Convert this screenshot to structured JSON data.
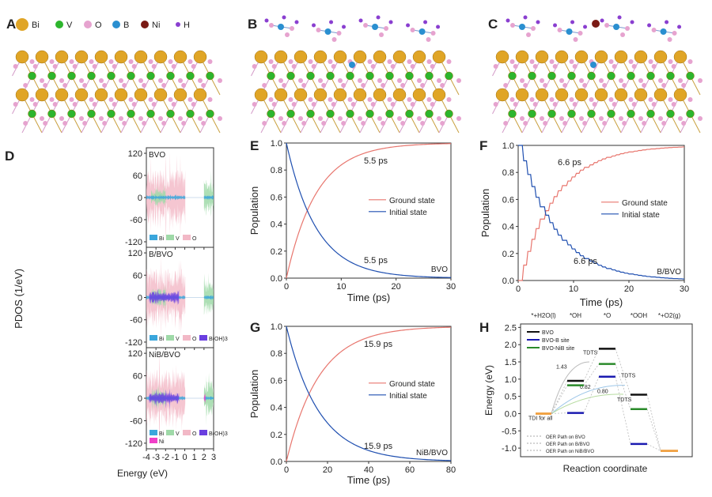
{
  "panel_labels": [
    "A",
    "B",
    "C",
    "D",
    "E",
    "F",
    "G",
    "H"
  ],
  "atom_legend": [
    {
      "symbol": "Bi",
      "color": "#e0a526"
    },
    {
      "symbol": "V",
      "color": "#2db52d"
    },
    {
      "symbol": "O",
      "color": "#e6a3cf"
    },
    {
      "symbol": "B",
      "color": "#2a8fd0"
    },
    {
      "symbol": "Ni",
      "color": "#7a1a14"
    },
    {
      "symbol": "H",
      "color": "#8a3fd0"
    }
  ],
  "chart_data": [
    {
      "panel": "D",
      "type": "area",
      "xlabel": "Energy (eV)",
      "ylabel": "PDOS (1/eV)",
      "xlim": [
        -4,
        3
      ],
      "xticks": [
        -4,
        -3,
        -2,
        -1,
        0,
        1,
        2,
        3
      ],
      "yticks": [
        -120,
        -60,
        0,
        60,
        120
      ],
      "subplots": [
        {
          "title": "BVO",
          "legend": [
            "Bi",
            "V",
            "O"
          ]
        },
        {
          "title": "B/BVO",
          "legend": [
            "Bi",
            "V",
            "O",
            "B(OH)3"
          ]
        },
        {
          "title": "NiB/BVO",
          "legend": [
            "Bi",
            "V",
            "O",
            "B(OH)3",
            "Ni"
          ]
        }
      ],
      "colors": {
        "Bi": "#3aa6dc",
        "V": "#9fd9a8",
        "O": "#f2b8c6",
        "B(OH)3": "#6a3fe0",
        "Ni": "#f040c8"
      }
    },
    {
      "panel": "E",
      "type": "line",
      "xlabel": "Time (ps)",
      "ylabel": "Population",
      "xlim": [
        0,
        30
      ],
      "ylim": [
        0,
        1
      ],
      "xticks": [
        0,
        10,
        20,
        30
      ],
      "yticks": [
        "0.0",
        "0.2",
        "0.4",
        "0.6",
        "0.8",
        "1.0"
      ],
      "series": [
        {
          "name": "Ground state",
          "color": "#e8766e",
          "tau_label": "5.5 ps"
        },
        {
          "name": "Initial state",
          "color": "#1f4fb0",
          "tau_label": "5.5 ps"
        }
      ],
      "tau": 5.5,
      "system": "BVO",
      "legend": "center-right"
    },
    {
      "panel": "F",
      "type": "line",
      "xlabel": "Time (ps)",
      "ylabel": "Population",
      "xlim": [
        0,
        30
      ],
      "ylim": [
        0,
        1
      ],
      "xticks": [
        0,
        10,
        20,
        30
      ],
      "yticks": [
        "0.0",
        "0.2",
        "0.4",
        "0.6",
        "0.8",
        "1.0"
      ],
      "series": [
        {
          "name": "Ground state",
          "color": "#e8766e",
          "tau_label": "6.6 ps"
        },
        {
          "name": "Initial state",
          "color": "#1f4fb0",
          "tau_label": "6.6 ps"
        }
      ],
      "tau": 6.6,
      "system": "B/BVO",
      "stepped": true,
      "legend": "center-right"
    },
    {
      "panel": "G",
      "type": "line",
      "xlabel": "Time (ps)",
      "ylabel": "Population",
      "xlim": [
        0,
        80
      ],
      "ylim": [
        0,
        1
      ],
      "xticks": [
        0,
        20,
        40,
        60,
        80
      ],
      "yticks": [
        "0.0",
        "0.2",
        "0.4",
        "0.6",
        "0.8",
        "1.0"
      ],
      "series": [
        {
          "name": "Ground state",
          "color": "#e8766e",
          "tau_label": "15.9 ps"
        },
        {
          "name": "Initial state",
          "color": "#1f4fb0",
          "tau_label": "15.9 ps"
        }
      ],
      "tau": 15.9,
      "system": "NiB/BVO",
      "legend": "center-right"
    },
    {
      "panel": "H",
      "type": "line",
      "xlabel": "Reaction coordinate",
      "ylabel": "Energy (eV)",
      "ylim": [
        -1.25,
        2.6
      ],
      "yticks": [
        "-1.0",
        "-0.5",
        "0.0",
        "0.5",
        "1.0",
        "1.5",
        "2.0",
        "2.5"
      ],
      "steps": [
        "*+H2O(l)",
        "*OH",
        "*O",
        "*OOH",
        "*+O2(g)"
      ],
      "series": [
        {
          "name": "BVO",
          "color": "#111111",
          "values": [
            0,
            0.95,
            1.88,
            0.55,
            -1.08
          ]
        },
        {
          "name": "BVO-B site",
          "color": "#1a1ab0",
          "values": [
            0,
            0.02,
            1.07,
            -0.88,
            -1.08
          ]
        },
        {
          "name": "BVO-NiB site",
          "color": "#2a8a2a",
          "values": [
            0,
            0.82,
            1.44,
            0.13,
            -1.08
          ]
        }
      ],
      "end_color": "#f0a040",
      "path_legend": [
        {
          "label": "OER Path on BVO",
          "color": "#222222"
        },
        {
          "label": "OER Path on B/BVO",
          "color": "#3a8fd0"
        },
        {
          "label": "OER Path on NiB/BVO",
          "color": "#6ab04a"
        }
      ],
      "annotations": [
        {
          "text": "1.43",
          "color": "#999999"
        },
        {
          "text": "0.82",
          "color": "#3a8fd0"
        },
        {
          "text": "0.80",
          "color": "#6ab04a"
        },
        {
          "text": "TDTS",
          "color": "#999999"
        },
        {
          "text": "TDTS",
          "color": "#3a8fd0"
        },
        {
          "text": "TDTS",
          "color": "#6ab04a"
        },
        {
          "text": "TDI for all",
          "color": "#f0a040"
        }
      ]
    }
  ]
}
